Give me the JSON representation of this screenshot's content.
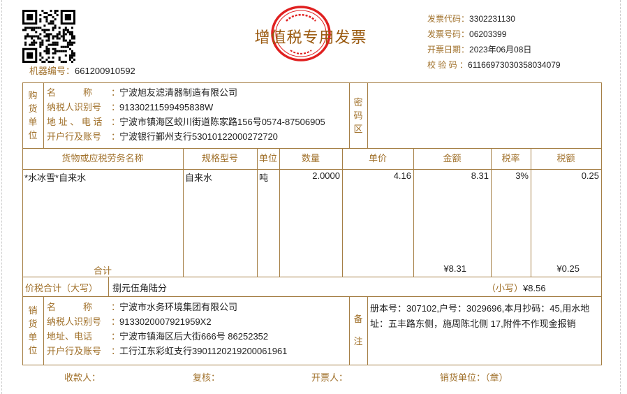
{
  "machine_no": {
    "label": "机器编号：",
    "value": "661200910592"
  },
  "title": "增值税专用发票",
  "stamp": {
    "top_text": "全国统一发票监制章",
    "bottom_text": "国家税务总局监制",
    "color": "#e02020"
  },
  "meta": [
    {
      "label": "发票代码：",
      "value": "3302231130"
    },
    {
      "label": "发票号码：",
      "value": "06203399"
    },
    {
      "label": "开票日期：",
      "value": "2023年06月08日"
    },
    {
      "label": "校 验 码 ：",
      "value": "61166973030358034079"
    }
  ],
  "buyer": {
    "section_label": [
      "购",
      "货",
      "单",
      "位"
    ],
    "fields": [
      {
        "label": "名　　　称",
        "value": "宁波旭友滤清器制造有限公司"
      },
      {
        "label": "纳税人识别号",
        "value": "91330211599495838W"
      },
      {
        "label": "地 址 、 电 话",
        "value": "宁波市镇海区蛟川街道陈家路156号0574-87506905"
      },
      {
        "label": "开户行及账号",
        "value": "宁波银行鄞州支行53010122000272720"
      }
    ],
    "cipher_label": [
      "密",
      "码",
      "区"
    ]
  },
  "items_table": {
    "headers": [
      "货物或应税劳务名称",
      "规格型号",
      "单位",
      "数量",
      "单价",
      "金额",
      "税率",
      "税额"
    ],
    "rows": [
      {
        "name": "*水冰雪*自来水",
        "spec": "自来水",
        "unit": "吨",
        "qty": "2.0000",
        "price": "4.16",
        "amount": "8.31",
        "rate": "3%",
        "tax": "0.25"
      }
    ],
    "subtotal_label": "合计",
    "subtotal_amount": "¥8.31",
    "subtotal_tax": "¥0.25"
  },
  "total": {
    "label": "价税合计（大写）",
    "words": "捌元伍角陆分",
    "small_label": "（小写）",
    "small_value": "¥8.56"
  },
  "seller": {
    "section_label": [
      "销",
      "货",
      "单",
      "位"
    ],
    "fields": [
      {
        "label": "名　　　称",
        "value": "宁波市水务环境集团有限公司"
      },
      {
        "label": "纳税人识别号",
        "value": "9133020007921959X2"
      },
      {
        "label": "地址、电话",
        "value": "宁波市镇海区后大街666号 86252352"
      },
      {
        "label": "开户行及账号",
        "value": "工行江东彩虹支行3901120219200061961"
      }
    ],
    "remarks_label": [
      "备",
      "注"
    ],
    "remarks": "册本号：307102,户号：3029696,本月抄码：45,用水地址：五丰路东侧，施周陈北侧 17,附件不作现金报销"
  },
  "footer": [
    {
      "label": "收款人："
    },
    {
      "label": "复核："
    },
    {
      "label": "开票人："
    },
    {
      "label": "销货单位：（章）"
    }
  ]
}
